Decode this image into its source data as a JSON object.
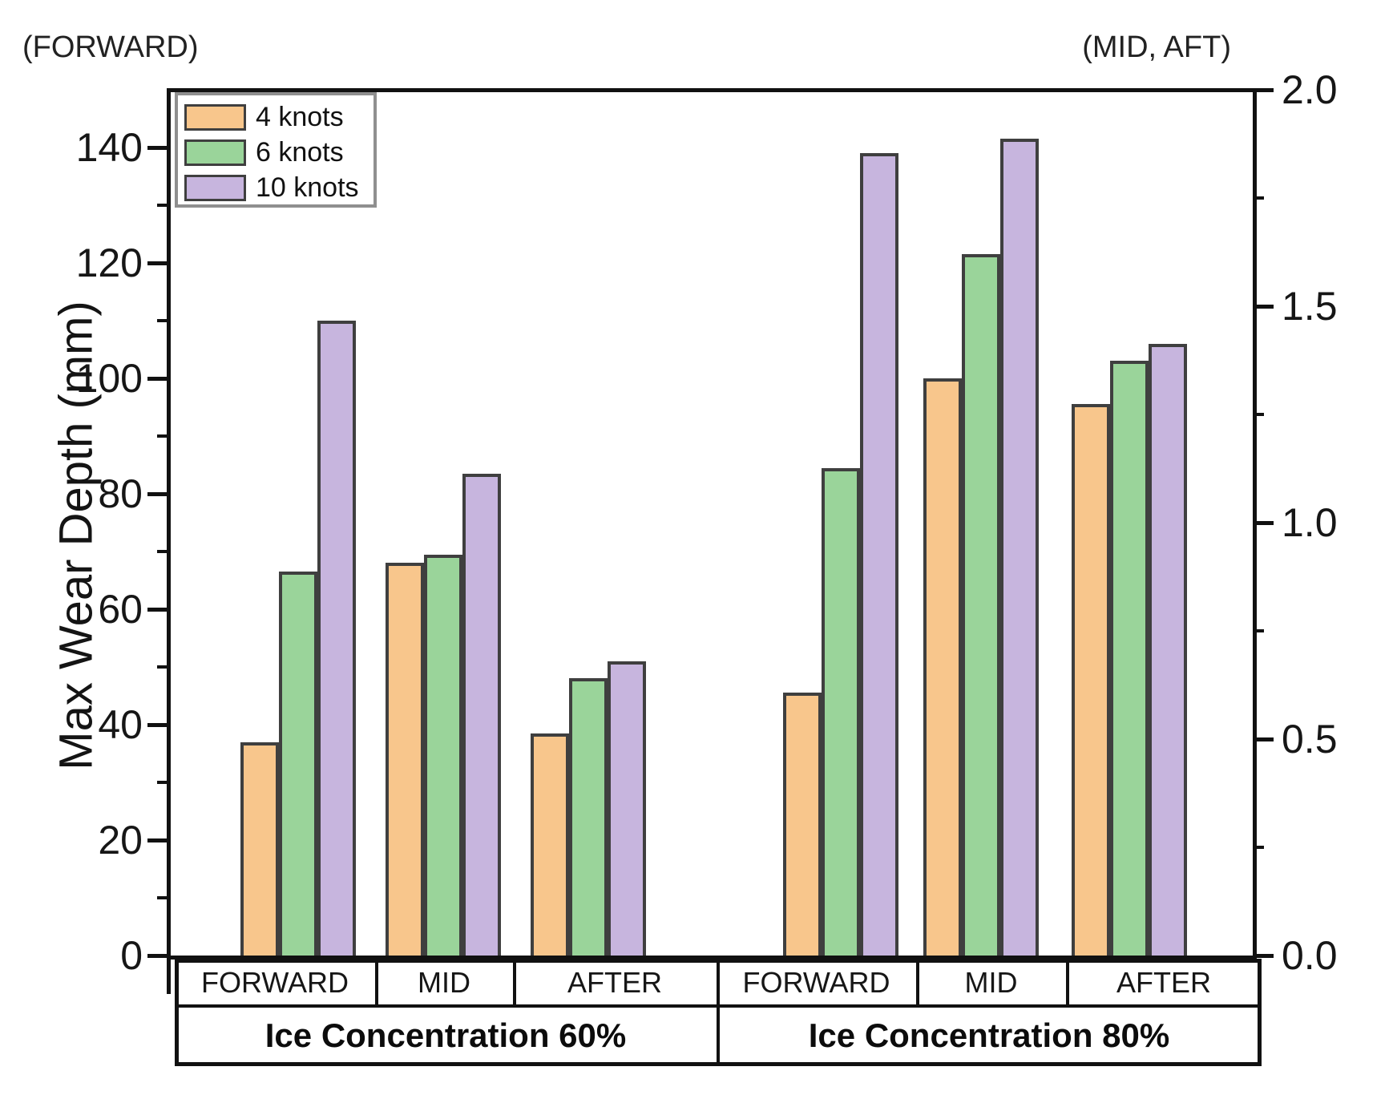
{
  "figure": {
    "left_axis_annotation": "(FORWARD)",
    "right_axis_annotation": "(MID, AFT)",
    "y_axis_label": "Max Wear Depth (mm)"
  },
  "legend": {
    "position": "top-left",
    "items": [
      {
        "label": "4 knots",
        "color": "#F8C68C"
      },
      {
        "label": "6 knots",
        "color": "#9AD49A"
      },
      {
        "label": "10 knots",
        "color": "#C7B5DE"
      }
    ]
  },
  "chart_data": {
    "type": "bar",
    "title": "",
    "y_left": {
      "label": "Max Wear Depth (mm)",
      "annotation": "(FORWARD)",
      "applies_to": "FORWARD groups",
      "min": 0,
      "max": 150,
      "major_tick_step": 20,
      "minor_tick_step": 10,
      "tick_labels": [
        "0",
        "20",
        "40",
        "60",
        "80",
        "100",
        "120",
        "140"
      ]
    },
    "y_right": {
      "annotation": "(MID, AFT)",
      "applies_to": "MID and AFTER groups",
      "min": 0.0,
      "max": 2.0,
      "major_tick_step": 0.5,
      "minor_tick_step": 0.25,
      "tick_labels": [
        "0.0",
        "0.5",
        "1.0",
        "1.5",
        "2.0"
      ]
    },
    "x": {
      "group_labels": [
        "FORWARD",
        "MID",
        "AFTER",
        "FORWARD",
        "MID",
        "AFTER"
      ],
      "section_labels": [
        "Ice Concentration 60%",
        "Ice Concentration 80%"
      ]
    },
    "grid": false,
    "legend_position": "top-left",
    "series": [
      {
        "name": "4 knots",
        "color": "#F8C68C",
        "values_left_mm": [
          37,
          68,
          38.5,
          45.5,
          100,
          95.5
        ],
        "values_right": [
          0.49,
          0.91,
          0.51,
          0.61,
          1.33,
          1.27
        ]
      },
      {
        "name": "6 knots",
        "color": "#9AD49A",
        "values_left_mm": [
          66.5,
          69.5,
          48,
          84.5,
          121.5,
          103
        ],
        "values_right": [
          0.89,
          0.93,
          0.64,
          1.13,
          1.62,
          1.37
        ]
      },
      {
        "name": "10 knots",
        "color": "#C7B5DE",
        "values_left_mm": [
          110,
          83.5,
          51,
          139,
          141.5,
          106
        ],
        "values_right": [
          1.47,
          1.11,
          0.68,
          1.85,
          1.89,
          1.41
        ]
      }
    ]
  }
}
